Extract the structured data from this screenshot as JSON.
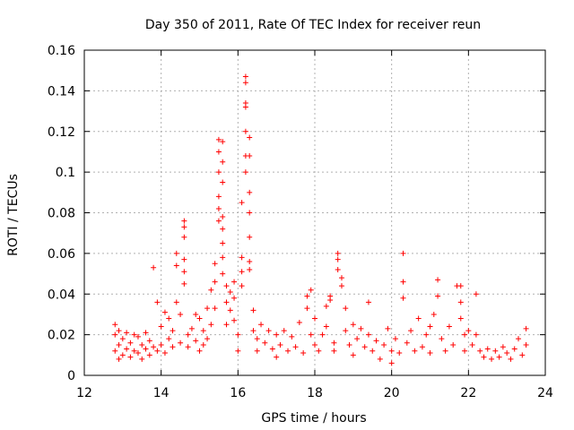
{
  "chart_data": {
    "type": "scatter",
    "title": "Day 350 of 2011, Rate Of TEC Index for receiver reun",
    "xlabel": "GPS time / hours",
    "ylabel": "ROTI / TECUs",
    "xlim": [
      12,
      24
    ],
    "ylim": [
      0,
      0.16
    ],
    "xticks": [
      12,
      14,
      16,
      18,
      20,
      22,
      24
    ],
    "xtick_labels": [
      "12",
      "14",
      "16",
      "18",
      "20",
      "22",
      "24"
    ],
    "yticks": [
      0,
      0.02,
      0.04,
      0.06,
      0.08,
      0.1,
      0.12,
      0.14,
      0.16
    ],
    "ytick_labels": [
      "0",
      "0.02",
      "0.04",
      "0.06",
      "0.08",
      "0.1",
      "0.12",
      "0.14",
      "0.16"
    ],
    "grid": true,
    "marker": "plus",
    "marker_color": "#ff0000",
    "series": [
      {
        "name": "ROTI",
        "points": [
          [
            12.8,
            0.012
          ],
          [
            12.8,
            0.02
          ],
          [
            12.8,
            0.025
          ],
          [
            12.9,
            0.008
          ],
          [
            12.9,
            0.015
          ],
          [
            12.9,
            0.022
          ],
          [
            13.0,
            0.01
          ],
          [
            13.0,
            0.018
          ],
          [
            13.1,
            0.013
          ],
          [
            13.1,
            0.021
          ],
          [
            13.2,
            0.009
          ],
          [
            13.2,
            0.016
          ],
          [
            13.3,
            0.012
          ],
          [
            13.3,
            0.02
          ],
          [
            13.4,
            0.011
          ],
          [
            13.4,
            0.019
          ],
          [
            13.5,
            0.008
          ],
          [
            13.5,
            0.015
          ],
          [
            13.6,
            0.013
          ],
          [
            13.6,
            0.021
          ],
          [
            13.7,
            0.01
          ],
          [
            13.7,
            0.017
          ],
          [
            13.8,
            0.053
          ],
          [
            13.8,
            0.014
          ],
          [
            13.9,
            0.012
          ],
          [
            13.9,
            0.036
          ],
          [
            14.0,
            0.015
          ],
          [
            14.0,
            0.024
          ],
          [
            14.1,
            0.011
          ],
          [
            14.1,
            0.031
          ],
          [
            14.2,
            0.018
          ],
          [
            14.2,
            0.028
          ],
          [
            14.3,
            0.014
          ],
          [
            14.3,
            0.022
          ],
          [
            14.4,
            0.06
          ],
          [
            14.4,
            0.054
          ],
          [
            14.4,
            0.036
          ],
          [
            14.5,
            0.016
          ],
          [
            14.5,
            0.03
          ],
          [
            14.6,
            0.076
          ],
          [
            14.6,
            0.073
          ],
          [
            14.6,
            0.068
          ],
          [
            14.6,
            0.057
          ],
          [
            14.6,
            0.051
          ],
          [
            14.6,
            0.045
          ],
          [
            14.7,
            0.02
          ],
          [
            14.7,
            0.014
          ],
          [
            14.8,
            0.023
          ],
          [
            14.9,
            0.03
          ],
          [
            14.9,
            0.017
          ],
          [
            15.0,
            0.028
          ],
          [
            15.0,
            0.012
          ],
          [
            15.1,
            0.015
          ],
          [
            15.1,
            0.022
          ],
          [
            15.2,
            0.033
          ],
          [
            15.2,
            0.018
          ],
          [
            15.3,
            0.042
          ],
          [
            15.3,
            0.025
          ],
          [
            15.4,
            0.055
          ],
          [
            15.4,
            0.046
          ],
          [
            15.4,
            0.033
          ],
          [
            15.5,
            0.116
          ],
          [
            15.5,
            0.11
          ],
          [
            15.5,
            0.1
          ],
          [
            15.5,
            0.088
          ],
          [
            15.5,
            0.082
          ],
          [
            15.5,
            0.076
          ],
          [
            15.6,
            0.115
          ],
          [
            15.6,
            0.105
          ],
          [
            15.6,
            0.095
          ],
          [
            15.6,
            0.078
          ],
          [
            15.6,
            0.072
          ],
          [
            15.6,
            0.065
          ],
          [
            15.6,
            0.058
          ],
          [
            15.6,
            0.05
          ],
          [
            15.7,
            0.044
          ],
          [
            15.7,
            0.036
          ],
          [
            15.7,
            0.025
          ],
          [
            15.8,
            0.041
          ],
          [
            15.8,
            0.032
          ],
          [
            15.9,
            0.046
          ],
          [
            15.9,
            0.038
          ],
          [
            15.9,
            0.027
          ],
          [
            16.0,
            0.02
          ],
          [
            16.0,
            0.012
          ],
          [
            16.1,
            0.085
          ],
          [
            16.1,
            0.058
          ],
          [
            16.1,
            0.051
          ],
          [
            16.1,
            0.044
          ],
          [
            16.2,
            0.147
          ],
          [
            16.2,
            0.144
          ],
          [
            16.2,
            0.134
          ],
          [
            16.2,
            0.132
          ],
          [
            16.2,
            0.12
          ],
          [
            16.2,
            0.108
          ],
          [
            16.2,
            0.1
          ],
          [
            16.3,
            0.117
          ],
          [
            16.3,
            0.108
          ],
          [
            16.3,
            0.09
          ],
          [
            16.3,
            0.08
          ],
          [
            16.3,
            0.068
          ],
          [
            16.3,
            0.056
          ],
          [
            16.3,
            0.052
          ],
          [
            16.4,
            0.032
          ],
          [
            16.4,
            0.022
          ],
          [
            16.5,
            0.018
          ],
          [
            16.5,
            0.012
          ],
          [
            16.6,
            0.025
          ],
          [
            16.7,
            0.016
          ],
          [
            16.8,
            0.022
          ],
          [
            16.9,
            0.013
          ],
          [
            17.0,
            0.02
          ],
          [
            17.0,
            0.009
          ],
          [
            17.1,
            0.015
          ],
          [
            17.2,
            0.022
          ],
          [
            17.3,
            0.012
          ],
          [
            17.4,
            0.019
          ],
          [
            17.5,
            0.014
          ],
          [
            17.6,
            0.026
          ],
          [
            17.7,
            0.011
          ],
          [
            17.8,
            0.039
          ],
          [
            17.8,
            0.033
          ],
          [
            17.9,
            0.042
          ],
          [
            17.9,
            0.02
          ],
          [
            18.0,
            0.015
          ],
          [
            18.0,
            0.028
          ],
          [
            18.1,
            0.012
          ],
          [
            18.2,
            0.02
          ],
          [
            18.3,
            0.034
          ],
          [
            18.3,
            0.024
          ],
          [
            18.4,
            0.039
          ],
          [
            18.4,
            0.037
          ],
          [
            18.5,
            0.016
          ],
          [
            18.5,
            0.012
          ],
          [
            18.6,
            0.06
          ],
          [
            18.6,
            0.057
          ],
          [
            18.6,
            0.052
          ],
          [
            18.7,
            0.048
          ],
          [
            18.7,
            0.044
          ],
          [
            18.8,
            0.033
          ],
          [
            18.8,
            0.022
          ],
          [
            18.9,
            0.015
          ],
          [
            19.0,
            0.025
          ],
          [
            19.0,
            0.01
          ],
          [
            19.1,
            0.018
          ],
          [
            19.2,
            0.023
          ],
          [
            19.3,
            0.014
          ],
          [
            19.4,
            0.036
          ],
          [
            19.4,
            0.02
          ],
          [
            19.5,
            0.012
          ],
          [
            19.6,
            0.017
          ],
          [
            19.7,
            0.008
          ],
          [
            19.8,
            0.015
          ],
          [
            19.9,
            0.023
          ],
          [
            20.0,
            0.006
          ],
          [
            20.0,
            0.012
          ],
          [
            20.1,
            0.018
          ],
          [
            20.2,
            0.011
          ],
          [
            20.3,
            0.06
          ],
          [
            20.3,
            0.046
          ],
          [
            20.3,
            0.038
          ],
          [
            20.4,
            0.016
          ],
          [
            20.5,
            0.022
          ],
          [
            20.6,
            0.012
          ],
          [
            20.7,
            0.028
          ],
          [
            20.8,
            0.014
          ],
          [
            20.9,
            0.02
          ],
          [
            21.0,
            0.024
          ],
          [
            21.0,
            0.011
          ],
          [
            21.1,
            0.03
          ],
          [
            21.2,
            0.047
          ],
          [
            21.2,
            0.039
          ],
          [
            21.3,
            0.018
          ],
          [
            21.4,
            0.012
          ],
          [
            21.5,
            0.024
          ],
          [
            21.6,
            0.015
          ],
          [
            21.7,
            0.044
          ],
          [
            21.8,
            0.044
          ],
          [
            21.8,
            0.036
          ],
          [
            21.8,
            0.028
          ],
          [
            21.9,
            0.02
          ],
          [
            21.9,
            0.012
          ],
          [
            22.0,
            0.022
          ],
          [
            22.1,
            0.015
          ],
          [
            22.2,
            0.04
          ],
          [
            22.2,
            0.02
          ],
          [
            22.3,
            0.012
          ],
          [
            22.4,
            0.009
          ],
          [
            22.5,
            0.013
          ],
          [
            22.6,
            0.008
          ],
          [
            22.7,
            0.012
          ],
          [
            22.8,
            0.009
          ],
          [
            22.9,
            0.014
          ],
          [
            23.0,
            0.011
          ],
          [
            23.1,
            0.008
          ],
          [
            23.2,
            0.013
          ],
          [
            23.3,
            0.018
          ],
          [
            23.4,
            0.01
          ],
          [
            23.5,
            0.023
          ],
          [
            23.5,
            0.015
          ]
        ]
      }
    ]
  }
}
